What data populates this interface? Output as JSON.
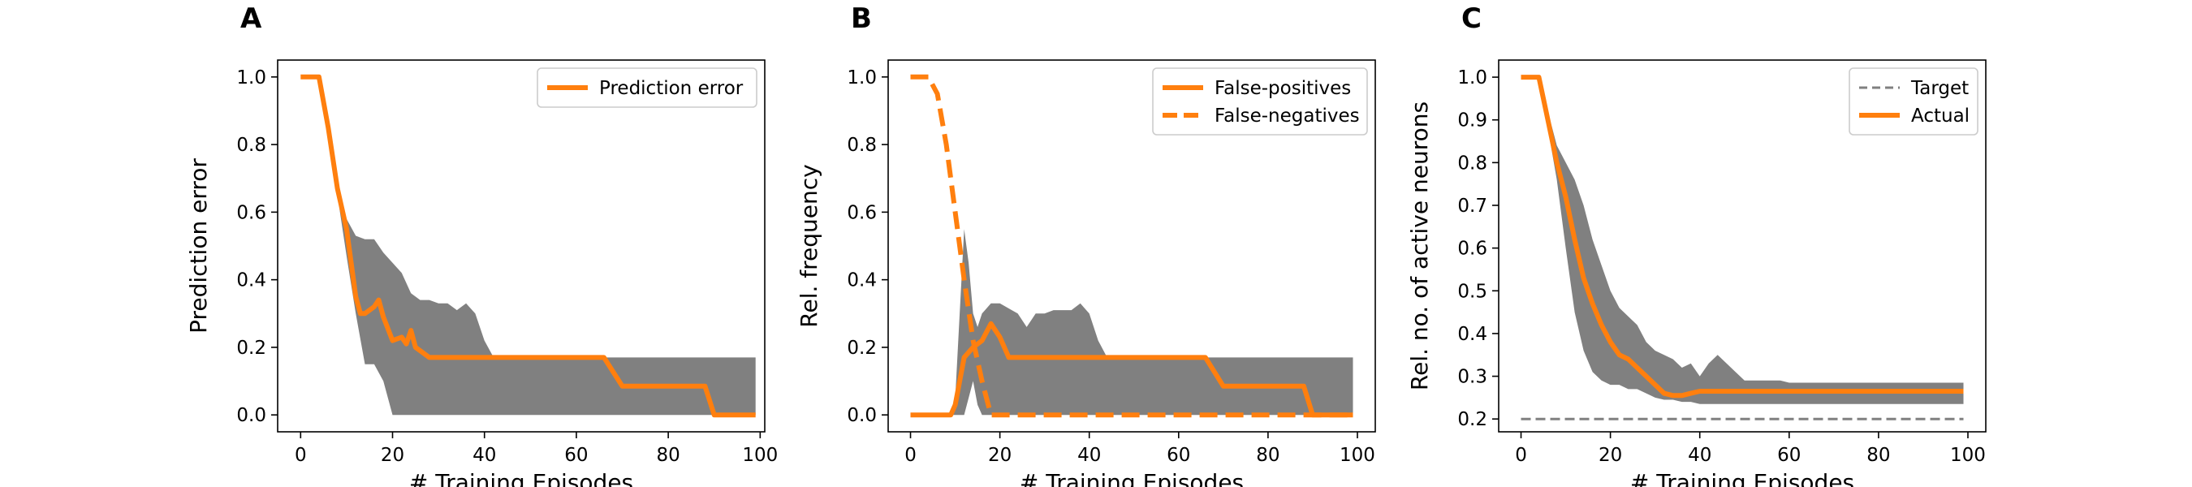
{
  "chart_data": [
    {
      "type": "line",
      "panel_label": "A",
      "xlabel": "# Training Episodes",
      "ylabel": "Prediction error",
      "xlim": [
        -5,
        101
      ],
      "ylim": [
        -0.05,
        1.05
      ],
      "xticks": [
        0,
        20,
        40,
        60,
        80,
        100
      ],
      "yticks": [
        0.0,
        0.2,
        0.4,
        0.6,
        0.8,
        1.0
      ],
      "ytick_labels": [
        "0.0",
        "0.2",
        "0.4",
        "0.6",
        "0.8",
        "1.0"
      ],
      "legend_position": "top-right",
      "band": {
        "color": "#808080",
        "x": [
          0,
          4,
          8,
          10,
          12,
          14,
          16,
          18,
          20,
          22,
          24,
          26,
          28,
          30,
          32,
          34,
          36,
          38,
          40,
          42,
          44,
          50,
          60,
          66,
          70,
          80,
          88,
          90,
          99
        ],
        "upper": [
          1.0,
          1.0,
          0.68,
          0.58,
          0.53,
          0.52,
          0.52,
          0.48,
          0.45,
          0.42,
          0.36,
          0.34,
          0.34,
          0.33,
          0.33,
          0.31,
          0.33,
          0.3,
          0.22,
          0.17,
          0.17,
          0.17,
          0.17,
          0.17,
          0.17,
          0.17,
          0.17,
          0.17,
          0.17
        ],
        "lower": [
          1.0,
          1.0,
          0.65,
          0.47,
          0.3,
          0.15,
          0.15,
          0.1,
          0.0,
          0.0,
          0.0,
          0.0,
          0.0,
          0.0,
          0.0,
          0.0,
          0.0,
          0.0,
          0.0,
          0.0,
          0.0,
          0.0,
          0.0,
          0.0,
          0.0,
          0.0,
          0.0,
          0.0,
          0.0
        ]
      },
      "series": [
        {
          "name": "Prediction error",
          "color": "#ff7f0e",
          "style": "solid",
          "x": [
            0,
            4,
            6,
            8,
            10,
            12,
            13,
            14,
            16,
            17,
            18,
            20,
            22,
            23,
            24,
            25,
            26,
            28,
            30,
            66,
            70,
            88,
            90,
            99
          ],
          "y": [
            1.0,
            1.0,
            0.85,
            0.67,
            0.55,
            0.35,
            0.3,
            0.3,
            0.32,
            0.34,
            0.29,
            0.22,
            0.23,
            0.21,
            0.25,
            0.2,
            0.19,
            0.17,
            0.17,
            0.17,
            0.085,
            0.085,
            0.0,
            0.0
          ]
        }
      ]
    },
    {
      "type": "line",
      "panel_label": "B",
      "xlabel": "# Training Episodes",
      "ylabel": "Rel. frequency",
      "xlim": [
        -5,
        104
      ],
      "ylim": [
        -0.05,
        1.05
      ],
      "xticks": [
        0,
        20,
        40,
        60,
        80,
        100
      ],
      "yticks": [
        0.0,
        0.2,
        0.4,
        0.6,
        0.8,
        1.0
      ],
      "ytick_labels": [
        "0.0",
        "0.2",
        "0.4",
        "0.6",
        "0.8",
        "1.0"
      ],
      "legend_position": "top-right",
      "band": {
        "color": "#808080",
        "x": [
          0,
          9,
          10,
          11,
          12,
          13,
          14,
          15,
          16,
          18,
          20,
          24,
          26,
          28,
          30,
          32,
          34,
          36,
          38,
          40,
          42,
          44,
          50,
          60,
          66,
          70,
          80,
          90,
          99
        ],
        "upper": [
          0.0,
          0.0,
          0.05,
          0.3,
          0.55,
          0.45,
          0.3,
          0.26,
          0.3,
          0.33,
          0.33,
          0.3,
          0.26,
          0.3,
          0.3,
          0.31,
          0.31,
          0.31,
          0.33,
          0.3,
          0.22,
          0.17,
          0.17,
          0.17,
          0.17,
          0.17,
          0.17,
          0.17,
          0.17
        ],
        "lower": [
          0.0,
          0.0,
          0.0,
          0.0,
          0.0,
          0.05,
          0.1,
          0.03,
          0.0,
          0.0,
          0.0,
          0.0,
          0.0,
          0.0,
          0.0,
          0.0,
          0.0,
          0.0,
          0.0,
          0.0,
          0.0,
          0.0,
          0.0,
          0.0,
          0.0,
          0.0,
          0.0,
          0.0,
          0.0
        ]
      },
      "series": [
        {
          "name": "False-positives",
          "color": "#ff7f0e",
          "style": "solid",
          "x": [
            0,
            9,
            10,
            11,
            12,
            14,
            16,
            18,
            20,
            22,
            66,
            70,
            88,
            90,
            99
          ],
          "y": [
            0.0,
            0.0,
            0.03,
            0.1,
            0.17,
            0.2,
            0.22,
            0.27,
            0.23,
            0.17,
            0.17,
            0.085,
            0.085,
            0.0,
            0.0
          ]
        },
        {
          "name": "False-negatives",
          "color": "#ff7f0e",
          "style": "dashed",
          "x": [
            0,
            4,
            6,
            8,
            10,
            12,
            14,
            16,
            18,
            20,
            99
          ],
          "y": [
            1.0,
            1.0,
            0.95,
            0.8,
            0.6,
            0.4,
            0.22,
            0.1,
            0.0,
            0.0,
            0.0
          ]
        }
      ]
    },
    {
      "type": "line",
      "panel_label": "C",
      "xlabel": "# Training Episodes",
      "ylabel": "Rel. no. of active neurons",
      "xlim": [
        -5,
        104
      ],
      "ylim": [
        0.17,
        1.04
      ],
      "xticks": [
        0,
        20,
        40,
        60,
        80,
        100
      ],
      "yticks": [
        0.2,
        0.3,
        0.4,
        0.5,
        0.6,
        0.7,
        0.8,
        0.9,
        1.0
      ],
      "ytick_labels": [
        "0.2",
        "0.3",
        "0.4",
        "0.5",
        "0.6",
        "0.7",
        "0.8",
        "0.9",
        "1.0"
      ],
      "legend_position": "top-right",
      "band": {
        "color": "#808080",
        "x": [
          0,
          4,
          6,
          8,
          10,
          12,
          14,
          16,
          18,
          20,
          22,
          24,
          26,
          28,
          30,
          32,
          34,
          36,
          38,
          40,
          42,
          44,
          46,
          48,
          50,
          55,
          58,
          60,
          70,
          80,
          90,
          99
        ],
        "upper": [
          1.0,
          1.0,
          0.92,
          0.84,
          0.8,
          0.76,
          0.7,
          0.62,
          0.56,
          0.5,
          0.46,
          0.44,
          0.42,
          0.38,
          0.36,
          0.35,
          0.34,
          0.32,
          0.33,
          0.3,
          0.33,
          0.35,
          0.33,
          0.31,
          0.29,
          0.29,
          0.29,
          0.285,
          0.285,
          0.285,
          0.285,
          0.285
        ],
        "lower": [
          1.0,
          1.0,
          0.88,
          0.76,
          0.6,
          0.45,
          0.36,
          0.31,
          0.29,
          0.28,
          0.28,
          0.27,
          0.27,
          0.26,
          0.25,
          0.245,
          0.245,
          0.24,
          0.24,
          0.235,
          0.235,
          0.235,
          0.235,
          0.235,
          0.235,
          0.235,
          0.235,
          0.235,
          0.235,
          0.235,
          0.235,
          0.235
        ]
      },
      "series": [
        {
          "name": "Target",
          "color": "#808080",
          "style": "dashed-thin",
          "x": [
            0,
            99
          ],
          "y": [
            0.2,
            0.2
          ]
        },
        {
          "name": "Actual",
          "color": "#ff7f0e",
          "style": "solid",
          "x": [
            0,
            4,
            6,
            8,
            10,
            12,
            14,
            16,
            18,
            20,
            22,
            24,
            26,
            28,
            30,
            32,
            34,
            36,
            38,
            40,
            45,
            50,
            60,
            70,
            80,
            90,
            99
          ],
          "y": [
            1.0,
            1.0,
            0.9,
            0.8,
            0.72,
            0.62,
            0.53,
            0.47,
            0.42,
            0.38,
            0.35,
            0.34,
            0.32,
            0.3,
            0.28,
            0.26,
            0.255,
            0.255,
            0.26,
            0.265,
            0.265,
            0.265,
            0.265,
            0.265,
            0.265,
            0.265,
            0.265
          ]
        }
      ]
    }
  ]
}
